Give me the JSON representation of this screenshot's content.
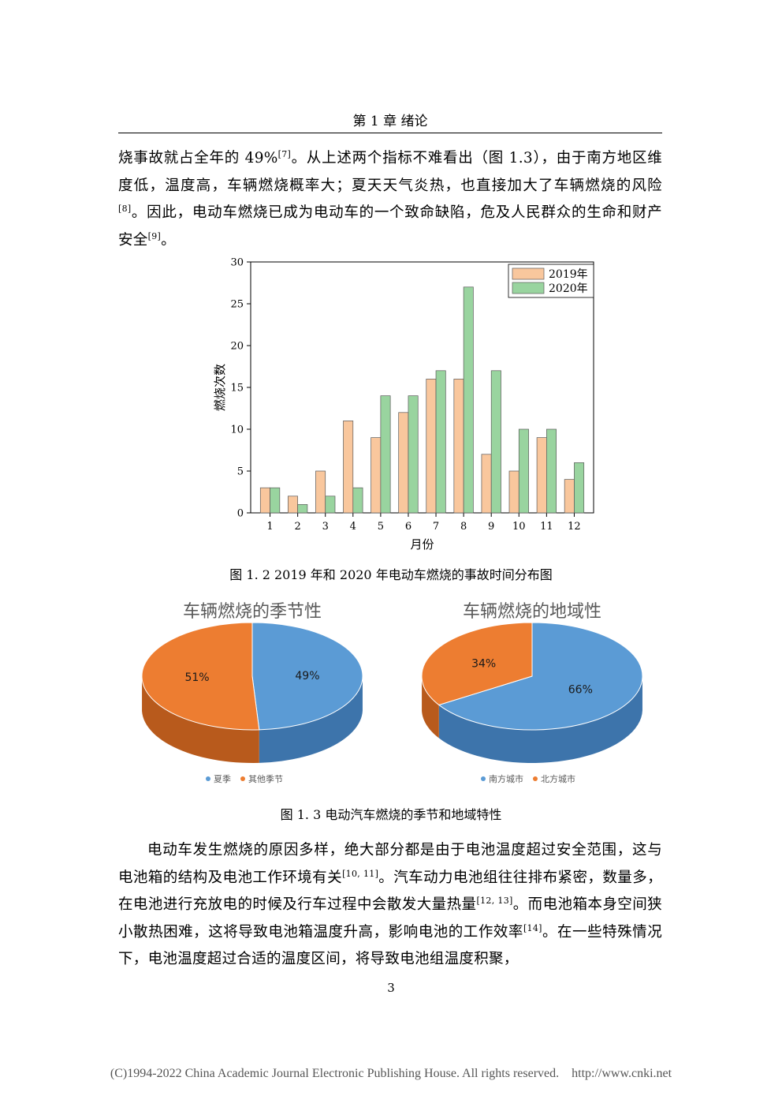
{
  "header": {
    "title": "第 1 章  绪论"
  },
  "paragraph1": {
    "s1": "烧事故就占全年的 49%",
    "r1": "[7]",
    "s2": "。从上述两个指标不难看出（图 1.3），由于南方地区维度低，温度高，车辆燃烧概率大；夏天天气炎热，也直接加大了车辆燃烧的风险",
    "r2": "[8]",
    "s3": "。因此，电动车燃烧已成为电动车的一个致命缺陷，危及人民群众的生命和财产安全",
    "r3": "[9]",
    "s4": "。"
  },
  "figure1": {
    "caption": "图 1. 2  2019 年和 2020 年电动车燃烧的事故时间分布图"
  },
  "figure2": {
    "caption": "图 1. 3  电动汽车燃烧的季节和地域特性"
  },
  "paragraph2": {
    "s1": "电动车发生燃烧的原因多样，绝大部分都是由于电池温度超过安全范围，这与电池箱的结构及电池工作环境有关",
    "r1": "[10, 11]",
    "s2": "。汽车动力电池组往往排布紧密，数量多，在电池进行充放电的时候及行车过程中会散发大量热量",
    "r2": "[12, 13]",
    "s3": "。而电池箱本身空间狭小散热困难，这将导致电池箱温度升高，影响电池的工作效率",
    "r3": "[14]",
    "s4": "。在一些特殊情况下，电池温度超过合适的温度区间，将导致电池组温度积聚，"
  },
  "page_number": "3",
  "footer": "(C)1994-2022 China Academic Journal Electronic Publishing House. All rights reserved.    http://www.cnki.net",
  "chart_data": [
    {
      "type": "bar",
      "categories": [
        "1",
        "2",
        "3",
        "4",
        "5",
        "6",
        "7",
        "8",
        "9",
        "10",
        "11",
        "12"
      ],
      "series": [
        {
          "name": "2019年",
          "values": [
            3,
            2,
            5,
            11,
            9,
            12,
            16,
            16,
            7,
            5,
            9,
            4
          ],
          "color": "#f9c79d"
        },
        {
          "name": "2020年",
          "values": [
            3,
            1,
            2,
            3,
            14,
            14,
            17,
            27,
            17,
            10,
            10,
            6
          ],
          "color": "#99d49f"
        }
      ],
      "xlabel": "月份",
      "ylabel": "燃烧次数",
      "ylim": [
        0,
        30
      ],
      "yticks": [
        0,
        5,
        10,
        15,
        20,
        25,
        30
      ],
      "legend": "top-right",
      "grid": false
    },
    {
      "type": "pie",
      "title": "车辆燃烧的季节性",
      "labels": [
        "夏季",
        "其他季节"
      ],
      "values": [
        49,
        51
      ],
      "display": [
        "49%",
        "51%"
      ],
      "colors": [
        "#5b9bd5",
        "#ed7d31"
      ],
      "legend": "bottom"
    },
    {
      "type": "pie",
      "title": "车辆燃烧的地域性",
      "labels": [
        "南方城市",
        "北方城市"
      ],
      "values": [
        66,
        34
      ],
      "display": [
        "66%",
        "34%"
      ],
      "colors": [
        "#5b9bd5",
        "#ed7d31"
      ],
      "legend": "bottom"
    }
  ]
}
